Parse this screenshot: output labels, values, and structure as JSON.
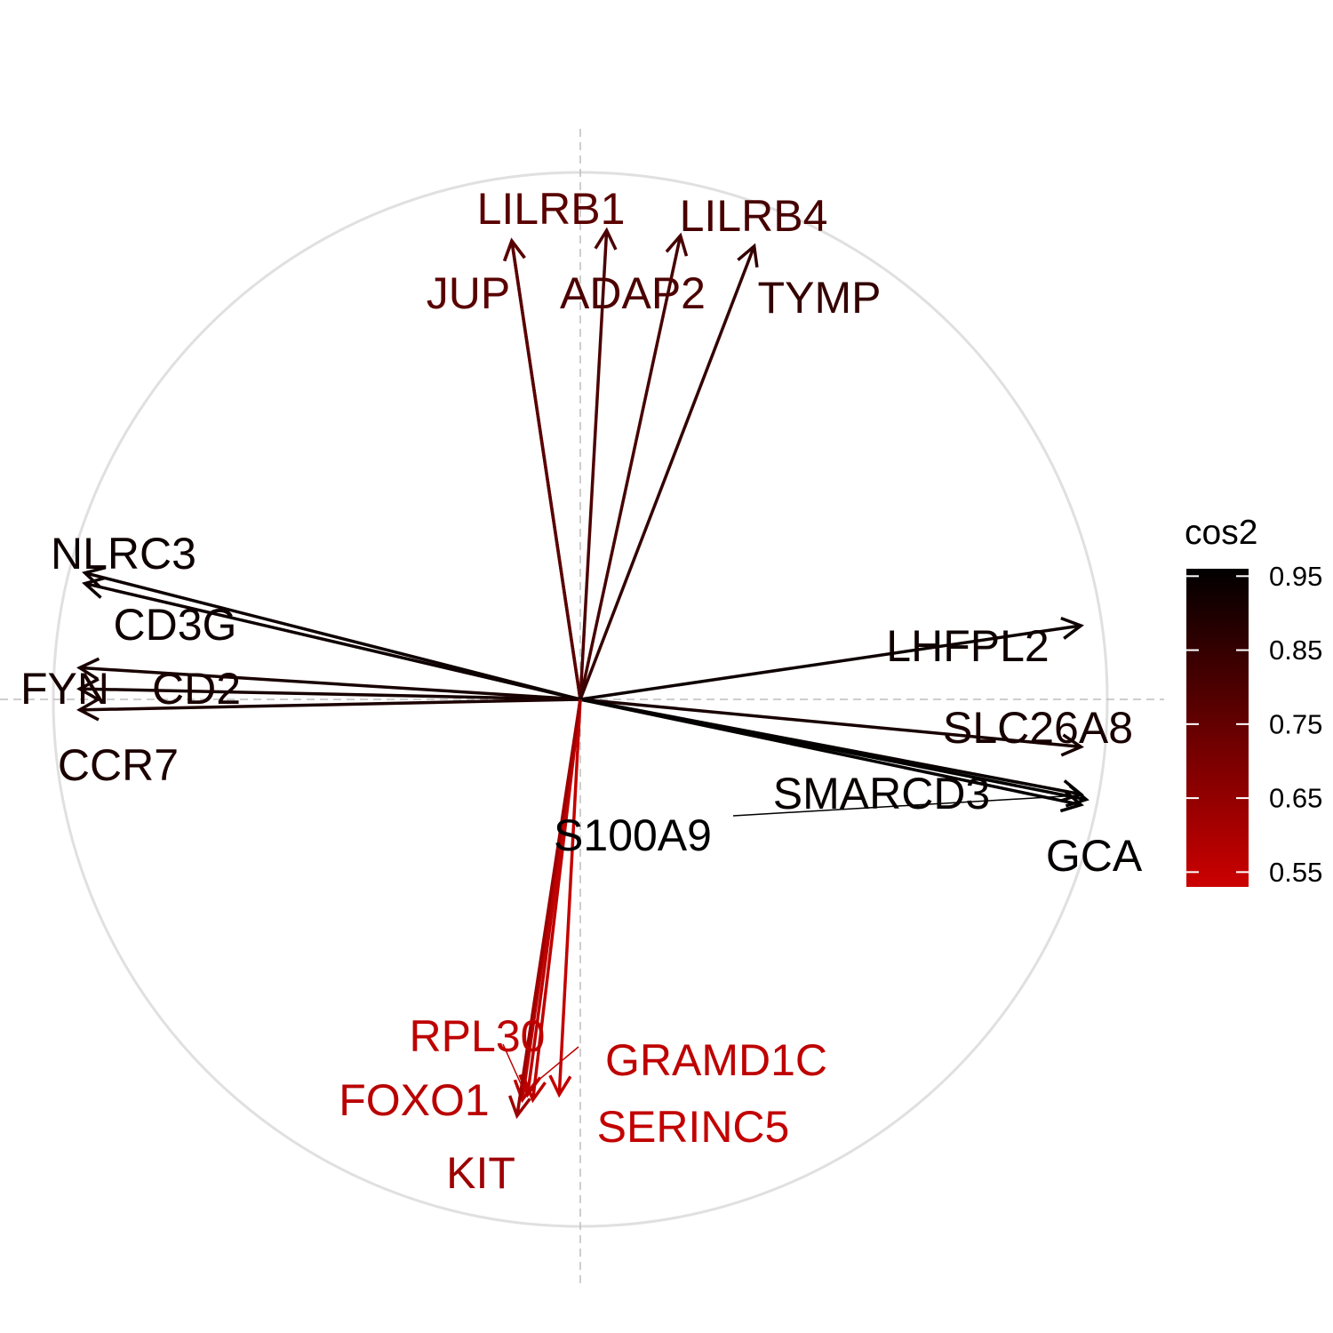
{
  "chart_data": {
    "type": "scatter",
    "title": "",
    "xlabel": "",
    "ylabel": "",
    "xlim": [
      -1.0,
      1.0
    ],
    "ylim": [
      -1.0,
      1.0
    ],
    "grid": false,
    "correlation_circle": true,
    "color_scale": {
      "name": "cos2",
      "ticks": [
        0.95,
        0.85,
        0.75,
        0.65,
        0.55
      ],
      "range": [
        0.53,
        0.96
      ],
      "low_color": "#cc0000",
      "high_color": "#000000"
    },
    "legend_position": "right",
    "variables": [
      {
        "label": "LILRB1",
        "x": -0.13,
        "y": 0.87,
        "cos2": 0.77
      },
      {
        "label": "JUP",
        "x": -0.13,
        "y": 0.87,
        "cos2": 0.77
      },
      {
        "label": "ADAP2",
        "x": 0.05,
        "y": 0.89,
        "cos2": 0.8
      },
      {
        "label": "LILRB4",
        "x": 0.19,
        "y": 0.88,
        "cos2": 0.81
      },
      {
        "label": "TYMP",
        "x": 0.33,
        "y": 0.86,
        "cos2": 0.85
      },
      {
        "label": "NLRC3",
        "x": -0.94,
        "y": 0.24,
        "cos2": 0.93
      },
      {
        "label": "CD3G",
        "x": -0.94,
        "y": 0.22,
        "cos2": 0.93
      },
      {
        "label": "FYN",
        "x": -0.95,
        "y": 0.06,
        "cos2": 0.91
      },
      {
        "label": "CD2",
        "x": -0.95,
        "y": 0.02,
        "cos2": 0.91
      },
      {
        "label": "CCR7",
        "x": -0.95,
        "y": -0.02,
        "cos2": 0.9
      },
      {
        "label": "LHFPL2",
        "x": 0.95,
        "y": 0.14,
        "cos2": 0.93
      },
      {
        "label": "SLC26A8",
        "x": 0.95,
        "y": -0.09,
        "cos2": 0.91
      },
      {
        "label": "SMARCD3",
        "x": 0.95,
        "y": -0.18,
        "cos2": 0.94
      },
      {
        "label": "S100A9",
        "x": 0.96,
        "y": -0.19,
        "cos2": 0.96
      },
      {
        "label": "GCA",
        "x": 0.95,
        "y": -0.2,
        "cos2": 0.95
      },
      {
        "label": "RPL30",
        "x": -0.1,
        "y": -0.75,
        "cos2": 0.56
      },
      {
        "label": "GRAMD1C",
        "x": -0.09,
        "y": -0.76,
        "cos2": 0.56
      },
      {
        "label": "FOXO1",
        "x": -0.11,
        "y": -0.76,
        "cos2": 0.57
      },
      {
        "label": "SERINC5",
        "x": -0.04,
        "y": -0.75,
        "cos2": 0.55
      },
      {
        "label": "KIT",
        "x": -0.12,
        "y": -0.79,
        "cos2": 0.63
      }
    ]
  }
}
